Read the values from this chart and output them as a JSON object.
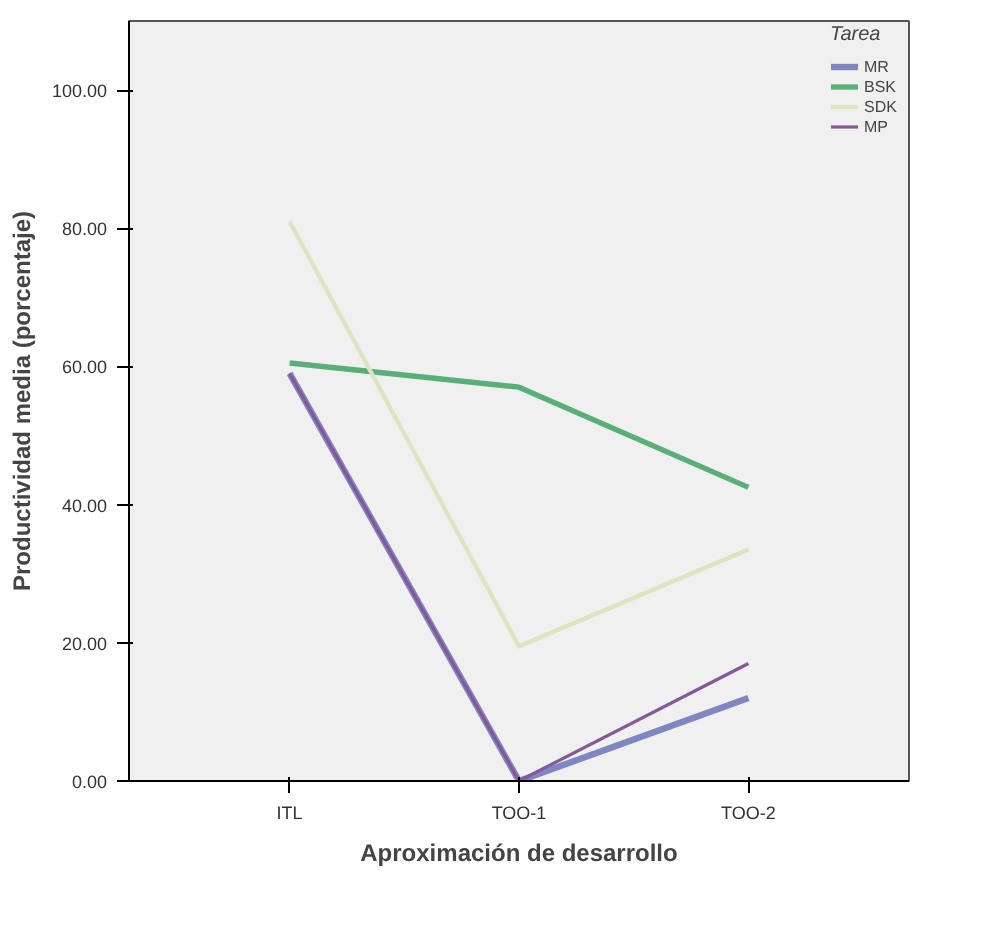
{
  "chart_data": {
    "type": "line",
    "xlabel": "Aproximación de desarrollo",
    "ylabel": "Productividad media (porcentaje)",
    "legend_title": "Tarea",
    "legend": "top right",
    "categories": [
      "ITL",
      "TOO-1",
      "TOO-2"
    ],
    "ylim": [
      0,
      110
    ],
    "yticks": [
      {
        "value": 0,
        "label": "0.00"
      },
      {
        "value": 20,
        "label": "20.00"
      },
      {
        "value": 40,
        "label": "40.00"
      },
      {
        "value": 60,
        "label": "60.00"
      },
      {
        "value": 80,
        "label": "80.00"
      },
      {
        "value": 100,
        "label": "100.00"
      }
    ],
    "series": [
      {
        "name": "MR",
        "color": "#7f86c0",
        "values": [
          59,
          0,
          12
        ]
      },
      {
        "name": "BSK",
        "color": "#5aae78",
        "values": [
          60.5,
          57,
          42.5
        ]
      },
      {
        "name": "SDK",
        "color": "#dfe3bf",
        "values": [
          81,
          19.5,
          33.5
        ]
      },
      {
        "name": "MP",
        "color": "#86589a",
        "values": [
          59,
          0,
          17
        ]
      }
    ]
  }
}
